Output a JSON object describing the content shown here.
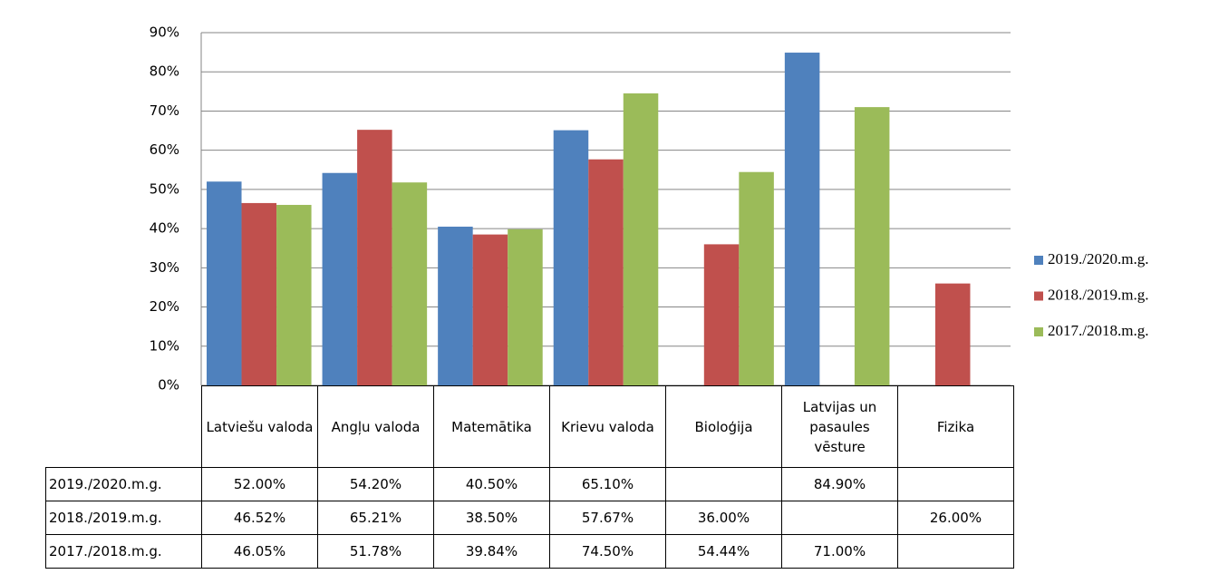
{
  "chart_data": {
    "type": "bar",
    "categories": [
      "Latviešu valoda",
      "Angļu valoda",
      "Matemātika",
      "Krievu valoda",
      "Bioloģija",
      "Latvijas un pasaules vēsture",
      "Fizika"
    ],
    "series": [
      {
        "name": "2019./2020.m.g.",
        "color": "#4f81bd",
        "values": [
          52.0,
          54.2,
          40.5,
          65.1,
          null,
          84.9,
          null
        ],
        "value_labels": [
          "52.00%",
          "54.20%",
          "40.50%",
          "65.10%",
          null,
          "84.90%",
          null
        ]
      },
      {
        "name": "2018./2019.m.g.",
        "color": "#c0504d",
        "values": [
          46.52,
          65.21,
          38.5,
          57.67,
          36.0,
          null,
          26.0
        ],
        "value_labels": [
          "46.52%",
          "65.21%",
          "38.50%",
          "57.67%",
          "36.00%",
          null,
          "26.00%"
        ]
      },
      {
        "name": "2017./2018.m.g.",
        "color": "#9bbb59",
        "values": [
          46.05,
          51.78,
          39.84,
          74.5,
          54.44,
          71.0,
          null
        ],
        "value_labels": [
          "46.05%",
          "51.78%",
          "39.84%",
          "74.50%",
          "54.44%",
          "71.00%",
          null
        ]
      }
    ],
    "ylim": [
      0,
      90
    ],
    "yticks": [
      {
        "value": 0,
        "label": "0%"
      },
      {
        "value": 10,
        "label": "10%"
      },
      {
        "value": 20,
        "label": "20%"
      },
      {
        "value": 30,
        "label": "30%"
      },
      {
        "value": 40,
        "label": "40%"
      },
      {
        "value": 50,
        "label": "50%"
      },
      {
        "value": 60,
        "label": "60%"
      },
      {
        "value": 70,
        "label": "70%"
      },
      {
        "value": 80,
        "label": "80%"
      },
      {
        "value": 90,
        "label": "90%"
      }
    ],
    "grid": true,
    "legend": "right"
  }
}
